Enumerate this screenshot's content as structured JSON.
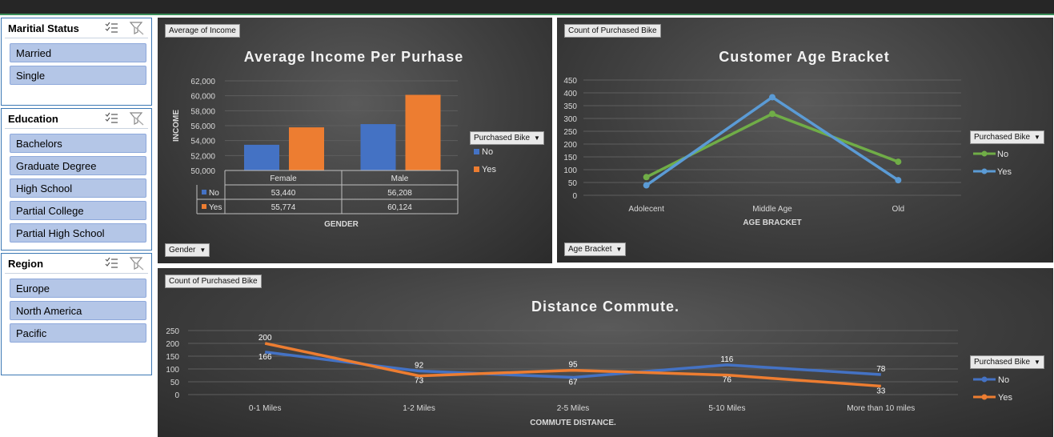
{
  "slicers": {
    "marital": {
      "title": "Maritial Status",
      "items": [
        "Married",
        "Single"
      ]
    },
    "education": {
      "title": "Education",
      "items": [
        "Bachelors",
        "Graduate Degree",
        "High School",
        "Partial College",
        "Partial High School"
      ]
    },
    "region": {
      "title": "Region",
      "items": [
        "Europe",
        "North America",
        "Pacific"
      ]
    }
  },
  "colors": {
    "no_bar": "#4472c4",
    "yes_bar": "#ed7d31",
    "no_age": "#70ad47",
    "yes_age": "#5b9bd5"
  },
  "income_chart": {
    "tag": "Average of Income",
    "filter_button": "Gender",
    "legend_title": "Purchased Bike",
    "legend_items": [
      "No",
      "Yes"
    ]
  },
  "age_chart": {
    "tag": "Count of Purchased Bike",
    "filter_button": "Age Bracket",
    "legend_title": "Purchased Bike",
    "legend_items": [
      "No",
      "Yes"
    ]
  },
  "commute_chart": {
    "tag": "Count of Purchased Bike",
    "legend_title": "Purchased Bike",
    "legend_items": [
      "No",
      "Yes"
    ]
  },
  "chart_data": [
    {
      "type": "bar",
      "title": "Average Income Per Purhase",
      "xlabel": "GENDER",
      "ylabel": "INCOME",
      "categories": [
        "Female",
        "Male"
      ],
      "series": [
        {
          "name": "No",
          "values": [
            53440,
            56208
          ]
        },
        {
          "name": "Yes",
          "values": [
            55774,
            60124
          ]
        }
      ],
      "table_values": [
        [
          "53,440",
          "56,208"
        ],
        [
          "55,774",
          "60,124"
        ]
      ],
      "ylim": [
        50000,
        62000
      ],
      "yticks": [
        "62,000",
        "60,000",
        "58,000",
        "56,000",
        "54,000",
        "52,000",
        "50,000"
      ],
      "legend": "right"
    },
    {
      "type": "line",
      "title": "Customer Age Bracket",
      "xlabel": "AGE BRACKET",
      "ylabel": "",
      "categories": [
        "Adolecent",
        "Middle Age",
        "Old"
      ],
      "series": [
        {
          "name": "No",
          "values": [
            71,
            318,
            131
          ]
        },
        {
          "name": "Yes",
          "values": [
            39,
            383,
            59
          ]
        }
      ],
      "ylim": [
        0,
        450
      ],
      "yticks": [
        "450",
        "400",
        "350",
        "300",
        "250",
        "200",
        "150",
        "100",
        "50",
        "0"
      ],
      "legend": "right"
    },
    {
      "type": "line",
      "title": "Distance Commute.",
      "xlabel": "COMMUTE DISTANCE.",
      "ylabel": "",
      "categories": [
        "0-1 Miles",
        "1-2 Miles",
        "2-5 Miles",
        "5-10 Miles",
        "More than 10 miles"
      ],
      "series": [
        {
          "name": "No",
          "values": [
            166,
            92,
            67,
            116,
            78
          ]
        },
        {
          "name": "Yes",
          "values": [
            200,
            73,
            95,
            76,
            33
          ]
        }
      ],
      "ylim": [
        0,
        250
      ],
      "yticks": [
        "250",
        "200",
        "150",
        "100",
        "50",
        "0"
      ],
      "legend": "right"
    }
  ]
}
